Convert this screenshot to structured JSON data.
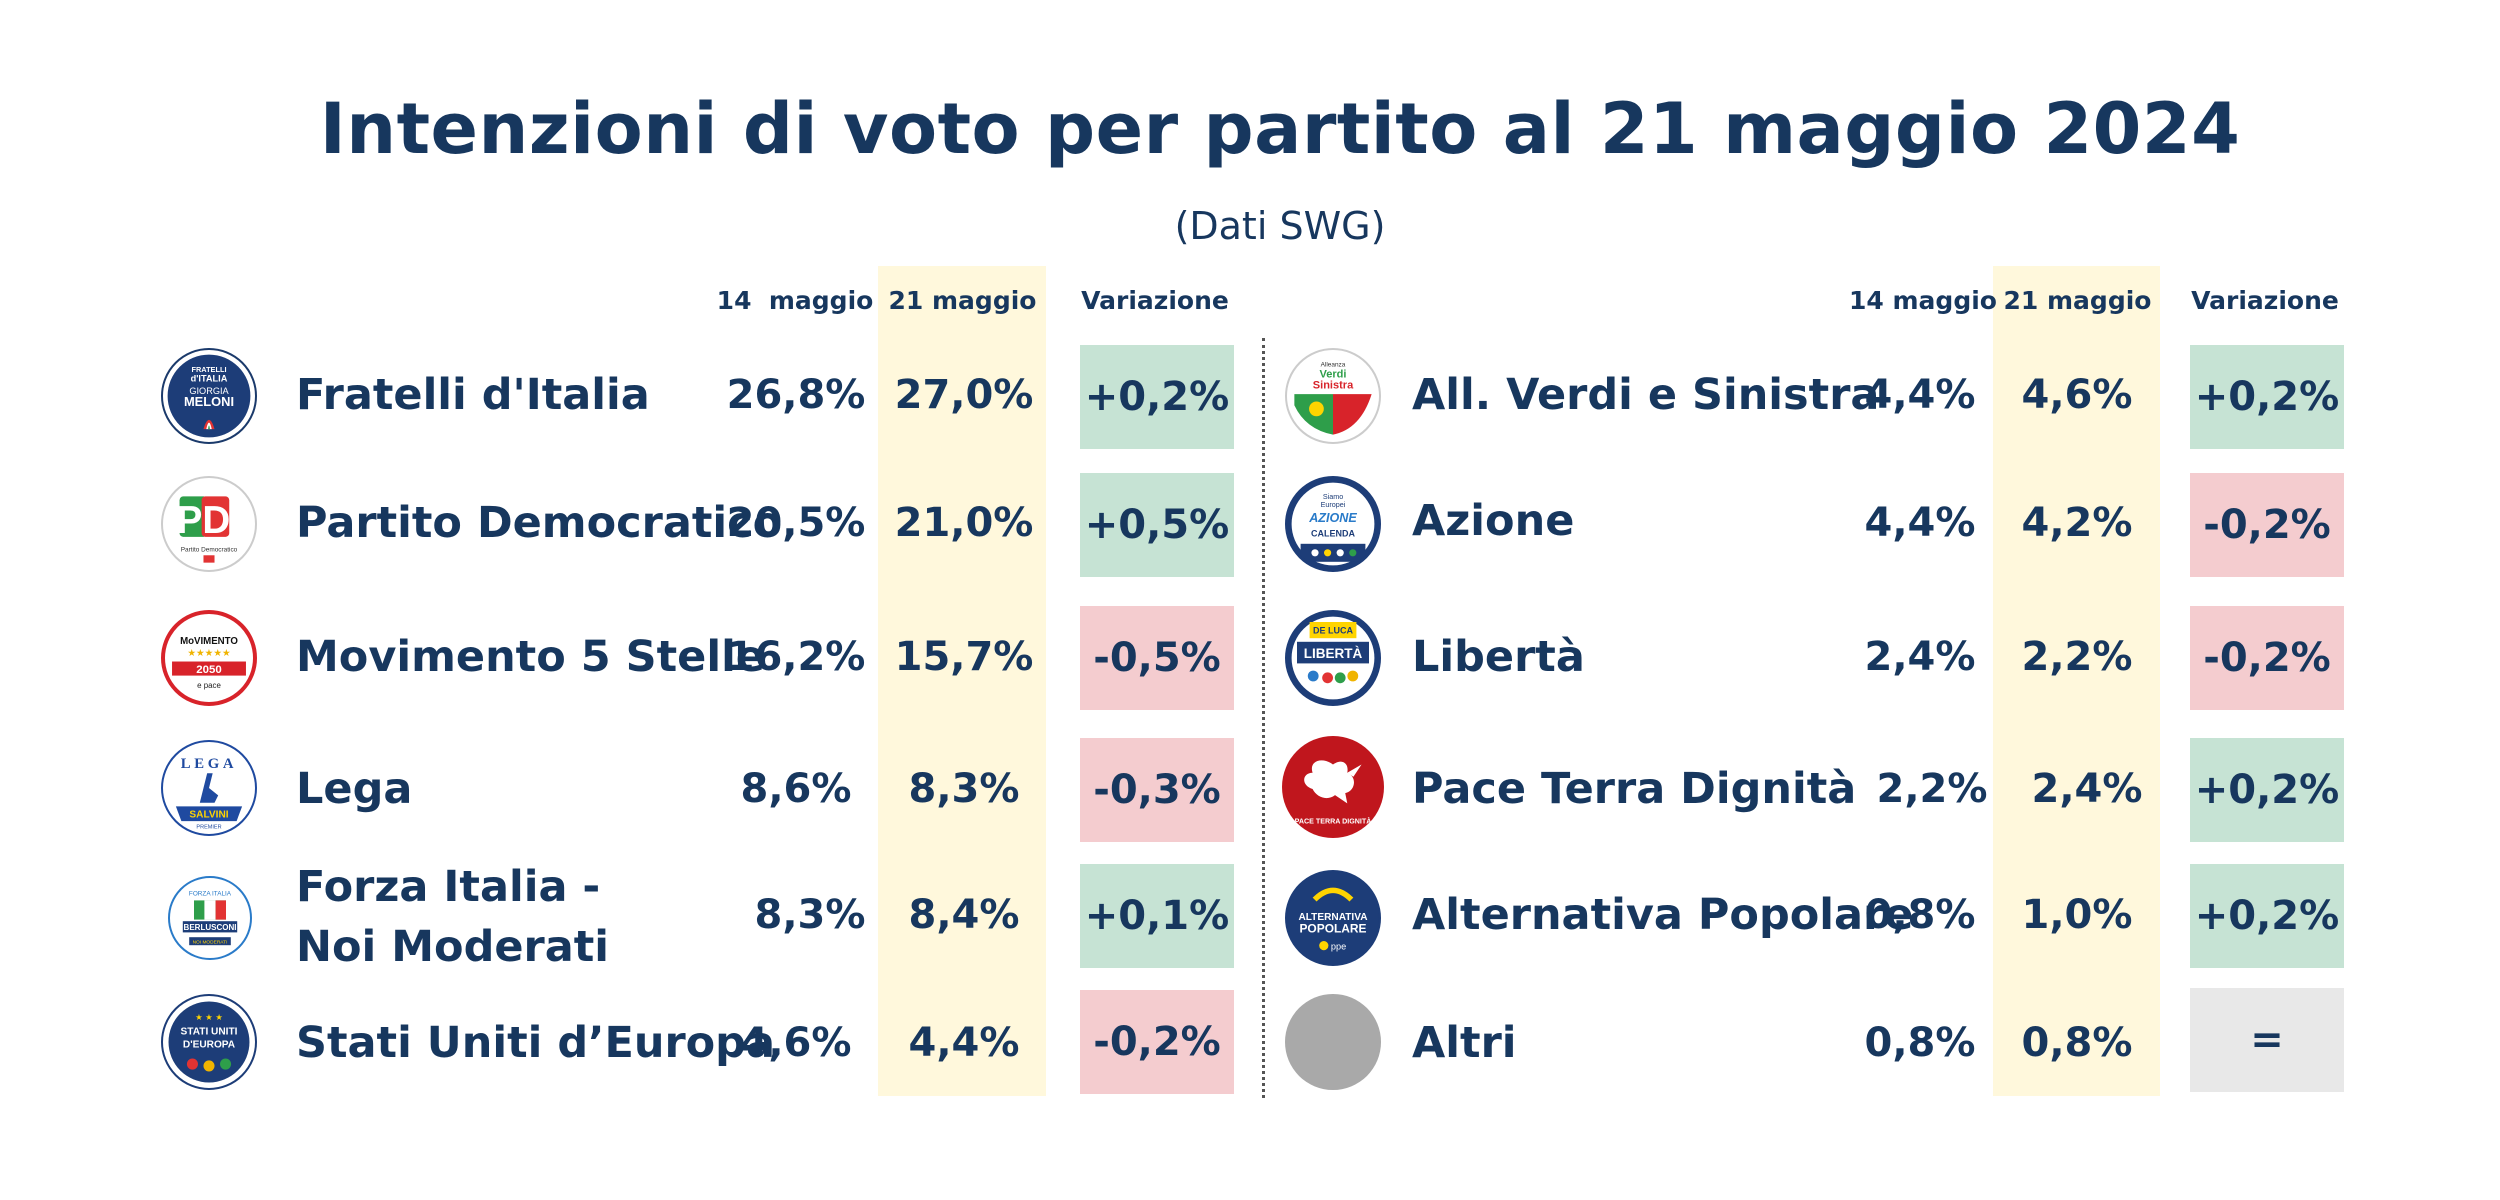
{
  "chart_data": {
    "type": "table",
    "title": "Intenzioni di voto per partito al 21 maggio 2024",
    "subtitle": "(Dati SWG)",
    "columns": [
      "14  maggio",
      "21 maggio",
      "Variazione"
    ],
    "columns_right": [
      "14 maggio",
      "21 maggio",
      "Variazione"
    ],
    "rows": [
      {
        "party": "Fratelli d'Italia",
        "logo": "fdi-logo",
        "may14": "26,8%",
        "may21": "27,0%",
        "change": "+0,2%",
        "trend": "up",
        "may14_value": 26.8,
        "may21_value": 27.0,
        "change_value": 0.2
      },
      {
        "party": "Partito Democratico",
        "logo": "pd-logo",
        "may14": "20,5%",
        "may21": "21,0%",
        "change": "+0,5%",
        "trend": "up",
        "may14_value": 20.5,
        "may21_value": 21.0,
        "change_value": 0.5
      },
      {
        "party": "Movimento 5 Stelle",
        "logo": "m5s-logo",
        "may14": "16,2%",
        "may21": "15,7%",
        "change": "-0,5%",
        "trend": "down",
        "may14_value": 16.2,
        "may21_value": 15.7,
        "change_value": -0.5
      },
      {
        "party": "Lega",
        "logo": "lega-logo",
        "may14": "8,6%",
        "may21": "8,3%",
        "change": "-0,3%",
        "trend": "down",
        "may14_value": 8.6,
        "may21_value": 8.3,
        "change_value": -0.3
      },
      {
        "party_line1": "Forza Italia -",
        "party_line2": "Noi Moderati",
        "logo": "fi-logo",
        "may14": "8,3%",
        "may21": "8,4%",
        "change": "+0,1%",
        "trend": "up",
        "may14_value": 8.3,
        "may21_value": 8.4,
        "change_value": 0.1
      },
      {
        "party": "Stati Uniti d’Europa",
        "logo": "sue-logo",
        "may14": "4,6%",
        "may21": "4,4%",
        "change": "-0,2%",
        "trend": "down",
        "may14_value": 4.6,
        "may21_value": 4.4,
        "change_value": -0.2
      },
      {
        "party": "All. Verdi e Sinistra",
        "logo": "avs-logo",
        "may14": "4,4%",
        "may21": "4,6%",
        "change": "+0,2%",
        "trend": "up",
        "may14_value": 4.4,
        "may21_value": 4.6,
        "change_value": 0.2
      },
      {
        "party": "Azione",
        "logo": "azione-logo",
        "may14": "4,4%",
        "may21": "4,2%",
        "change": "-0,2%",
        "trend": "down",
        "may14_value": 4.4,
        "may21_value": 4.2,
        "change_value": -0.2
      },
      {
        "party": "Libertà",
        "logo": "liberta-logo",
        "may14": "2,4%",
        "may21": "2,2%",
        "change": "-0,2%",
        "trend": "down",
        "may14_value": 2.4,
        "may21_value": 2.2,
        "change_value": -0.2
      },
      {
        "party": "Pace Terra Dignità",
        "logo": "ptd-logo",
        "may14": "2,2%",
        "may21": "2,4%",
        "change": "+0,2%",
        "trend": "up",
        "may14_value": 2.2,
        "may21_value": 2.4,
        "change_value": 0.2
      },
      {
        "party": "Alternativa Popolare",
        "logo": "ap-logo",
        "may14": "0,8%",
        "may21": "1,0%",
        "change": "+0,2%",
        "trend": "up",
        "may14_value": 0.8,
        "may21_value": 1.0,
        "change_value": 0.2
      },
      {
        "party": "Altri",
        "logo": "grey-circle",
        "may14": "0,8%",
        "may21": "0,8%",
        "change": "=",
        "trend": "equal",
        "may14_value": 0.8,
        "may21_value": 0.8,
        "change_value": 0
      }
    ]
  },
  "logos": {
    "fdi": {
      "line1": "FRATELLI",
      "line2": "d'ITALIA",
      "line3": "GIORGIA",
      "line4": "MELONI"
    },
    "pd": {
      "mark": "PD",
      "caption": "Partito Democratico"
    },
    "m5s": {
      "line1": "MoVIMENTO",
      "line2": "2050",
      "line3": "e pace"
    },
    "lega": {
      "line1": "LEGA",
      "line2": "SALVINI",
      "line3": "PREMIER"
    },
    "fi": {
      "line1": "FORZA ITALIA",
      "line2": "BERLUSCONI",
      "line3": "NOI MODERATI"
    },
    "sue": {
      "line1": "STATI UNITI",
      "line2": "D'EUROPA"
    },
    "avs": {
      "line1": "Alleanza",
      "line2": "Verdi",
      "line3": "Sinistra"
    },
    "azione": {
      "line1": "Siamo",
      "line2": "Europei",
      "line3": "AZIONE",
      "line4": "CALENDA"
    },
    "liberta": {
      "line1": "DE LUCA",
      "line2": "LIBERTÀ"
    },
    "ptd": {
      "caption": "PACE TERRA DIGNITÀ"
    },
    "ap": {
      "line1": "ALTERNATIVA",
      "line2": "POPOLARE",
      "line3": "ppe"
    }
  },
  "colors": {
    "navy": "#17375e",
    "up": "#c6e3d4",
    "down": "#f4cccf",
    "equal": "#e8e8e8",
    "highlight": "#fff8dc"
  }
}
